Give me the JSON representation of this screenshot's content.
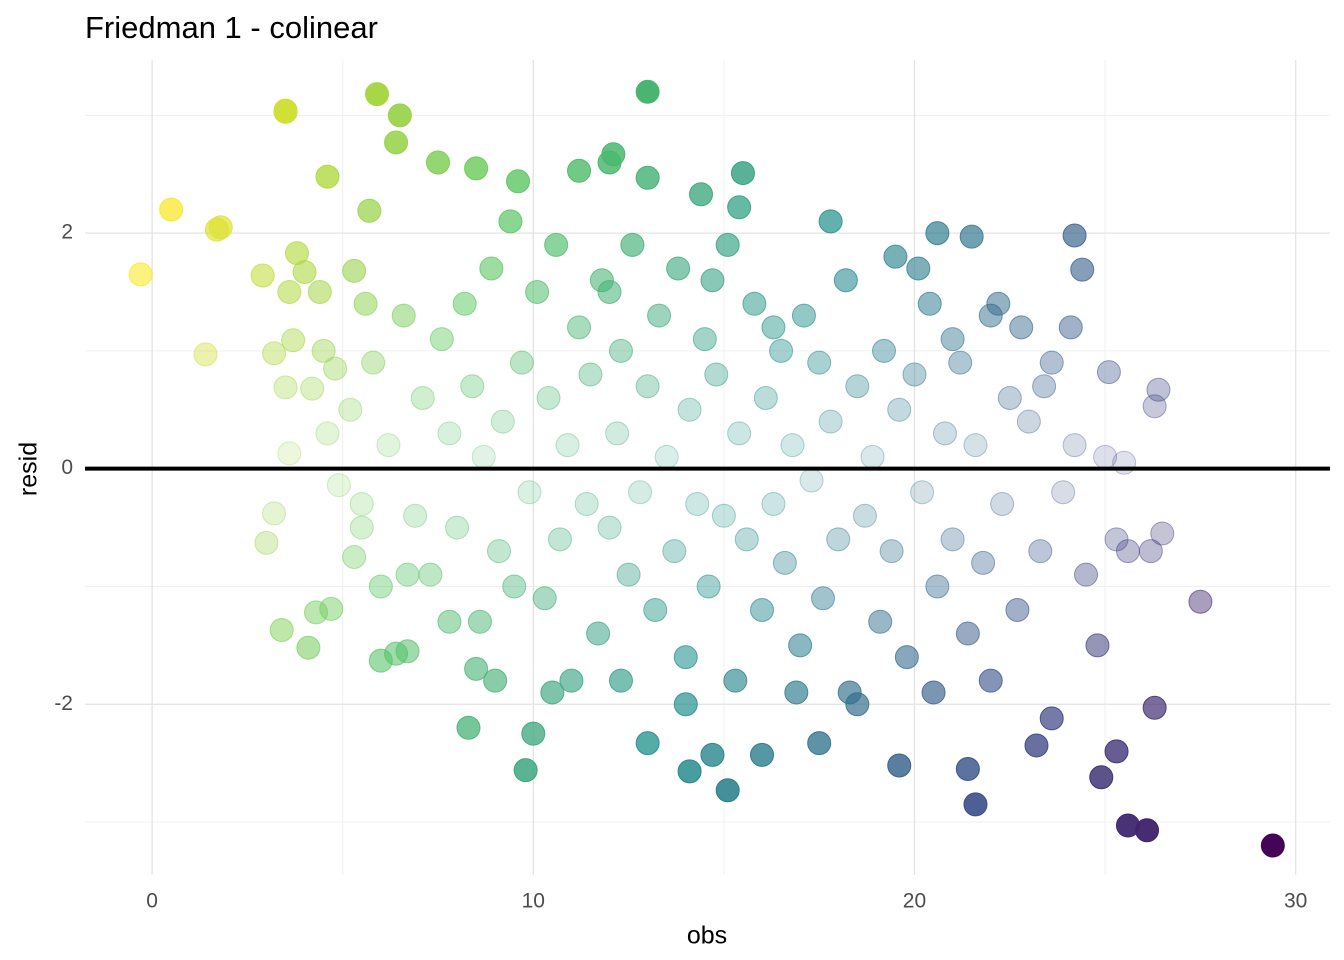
{
  "chart_data": {
    "type": "scatter",
    "title": "Friedman 1 - colinear",
    "x_label": "obs",
    "y_label": "resid",
    "xlim": [
      -1.76,
      30.9
    ],
    "ylim": [
      -3.45,
      3.47
    ],
    "xticks": [
      0,
      10,
      20,
      30
    ],
    "yticks": [
      -2,
      0,
      2
    ],
    "x_minor_grid": [
      5,
      15,
      25
    ],
    "y_minor_grid": [
      -3,
      -1,
      1,
      3
    ],
    "grid": true,
    "hline": 0,
    "color_scale": {
      "colors": [
        "#fde725",
        "#5ec962",
        "#21918c",
        "#3b528b",
        "#440154"
      ],
      "domain": [
        -2,
        33
      ]
    },
    "alpha_range": [
      0.15,
      1
    ],
    "alpha_domain": [
      0,
      3.2
    ],
    "x": [
      -0.3,
      0.5,
      1.4,
      1.7,
      1.8,
      3.5,
      3.5,
      4.6,
      5.9,
      6.5,
      6.4,
      5.7,
      7.5,
      8.5,
      9.6,
      11.2,
      12.0,
      12.1,
      13.0,
      13.0,
      15.5,
      15.4,
      14.4,
      17.8,
      20.6,
      21.5,
      24.2,
      24.4,
      24.1,
      26.4,
      26.3,
      25.5,
      25.1,
      27.5,
      26.3,
      29.4,
      25.6,
      26.1,
      24.9,
      25.3,
      21.6,
      21.4,
      19.6,
      15.1,
      14.1,
      9.8,
      10.0,
      8.3,
      13.0,
      14.7,
      16.0,
      17.5,
      23.2,
      23.6,
      3.0,
      3.2,
      3.4,
      4.1,
      4.3,
      4.7,
      6.0,
      6.7,
      6.4,
      3.6,
      2.9,
      3.6,
      3.8,
      4.0,
      4.4,
      3.2,
      3.7,
      3.5,
      4.2,
      4.5,
      4.6,
      4.8,
      4.9,
      5.3,
      5.6,
      5.2,
      5.5,
      5.8,
      6.2,
      6.6,
      6.9,
      7.1,
      7.3,
      7.6,
      7.8,
      8.0,
      8.2,
      8.4,
      8.6,
      8.7,
      8.9,
      9.1,
      9.2,
      9.4,
      9.5,
      9.7,
      9.9,
      10.1,
      10.3,
      10.4,
      10.6,
      10.7,
      10.9,
      11.0,
      11.2,
      11.4,
      11.5,
      11.7,
      11.8,
      12.0,
      12.2,
      12.3,
      12.5,
      12.6,
      12.8,
      13.0,
      13.2,
      13.3,
      13.5,
      13.7,
      13.8,
      14.0,
      14.1,
      14.3,
      14.5,
      14.6,
      14.8,
      15.0,
      15.1,
      15.3,
      15.4,
      15.6,
      15.8,
      16.0,
      16.1,
      16.3,
      16.5,
      16.6,
      16.8,
      17.0,
      17.1,
      17.3,
      17.5,
      17.6,
      17.8,
      18.0,
      18.2,
      18.3,
      18.5,
      18.7,
      18.9,
      19.1,
      19.2,
      19.4,
      19.6,
      19.8,
      20.0,
      20.2,
      20.4,
      20.6,
      20.8,
      21.0,
      21.2,
      21.4,
      21.6,
      21.8,
      22.0,
      22.3,
      22.5,
      22.7,
      23.0,
      23.3,
      23.6,
      23.9,
      24.2,
      24.5,
      24.8,
      25.0,
      25.3,
      25.6,
      26.2,
      26.5,
      22.0,
      20.5,
      18.5,
      16.9,
      14.0,
      12.3,
      10.5,
      9.0,
      8.5,
      7.8,
      6.7,
      6.0,
      5.5,
      5.3,
      12.0,
      14.7,
      19.5,
      20.1,
      21.0,
      22.2,
      22.8,
      23.4,
      16.3
    ],
    "values": [
      1.65,
      2.2,
      0.97,
      2.03,
      2.05,
      3.04,
      3.03,
      2.48,
      3.18,
      3.0,
      2.77,
      2.19,
      2.6,
      2.55,
      2.44,
      2.53,
      2.6,
      2.67,
      3.2,
      2.47,
      2.51,
      2.22,
      2.33,
      2.1,
      2.0,
      1.97,
      1.98,
      1.69,
      1.2,
      0.67,
      0.53,
      0.05,
      0.82,
      -1.13,
      -2.03,
      -3.2,
      -3.03,
      -3.07,
      -2.62,
      -2.4,
      -2.85,
      -2.55,
      -2.52,
      -2.73,
      -2.57,
      -2.56,
      -2.25,
      -2.2,
      -2.33,
      -2.43,
      -2.43,
      -2.33,
      -2.35,
      -2.12,
      -0.63,
      -0.38,
      -1.37,
      -1.52,
      -1.22,
      -1.19,
      -1.63,
      -1.55,
      -1.57,
      0.13,
      1.64,
      1.5,
      1.83,
      1.67,
      1.5,
      0.98,
      1.09,
      0.69,
      0.68,
      1.0,
      0.3,
      0.85,
      -0.14,
      1.68,
      1.4,
      0.5,
      -0.3,
      0.9,
      0.2,
      1.3,
      -0.4,
      0.6,
      -0.9,
      1.1,
      0.3,
      -0.5,
      1.4,
      0.7,
      -1.3,
      0.1,
      1.7,
      -0.7,
      0.4,
      2.1,
      -1.0,
      0.9,
      -0.2,
      1.5,
      -1.1,
      0.6,
      1.9,
      -0.6,
      0.2,
      -1.8,
      1.2,
      -0.3,
      0.8,
      -1.4,
      1.6,
      -0.5,
      0.3,
      1.0,
      -0.9,
      1.9,
      -0.2,
      0.7,
      -1.2,
      1.3,
      0.1,
      -0.7,
      1.7,
      -1.6,
      0.5,
      -0.3,
      1.1,
      -1.0,
      0.8,
      -0.4,
      1.9,
      -1.8,
      0.3,
      -0.6,
      1.4,
      -1.2,
      0.6,
      -0.3,
      1.0,
      -0.8,
      0.2,
      -1.5,
      1.3,
      -0.1,
      0.9,
      -1.1,
      0.4,
      -0.6,
      1.6,
      -1.9,
      0.7,
      -0.4,
      0.1,
      -1.3,
      1.0,
      -0.7,
      0.5,
      -1.6,
      0.8,
      -0.2,
      1.4,
      -1.0,
      0.3,
      -0.6,
      0.9,
      -1.4,
      0.2,
      -0.8,
      1.3,
      -0.3,
      0.6,
      -1.2,
      0.4,
      -0.7,
      0.9,
      -0.2,
      0.2,
      -0.9,
      -1.5,
      0.1,
      -0.6,
      -0.7,
      -0.7,
      -0.55,
      -1.8,
      -1.9,
      -2.0,
      -1.9,
      -2.0,
      -1.8,
      -1.9,
      -1.8,
      -1.7,
      -1.3,
      -0.9,
      -1.0,
      -0.5,
      -0.75,
      1.5,
      1.6,
      1.8,
      1.7,
      1.1,
      1.4,
      1.2,
      0.7,
      1.2
    ]
  }
}
